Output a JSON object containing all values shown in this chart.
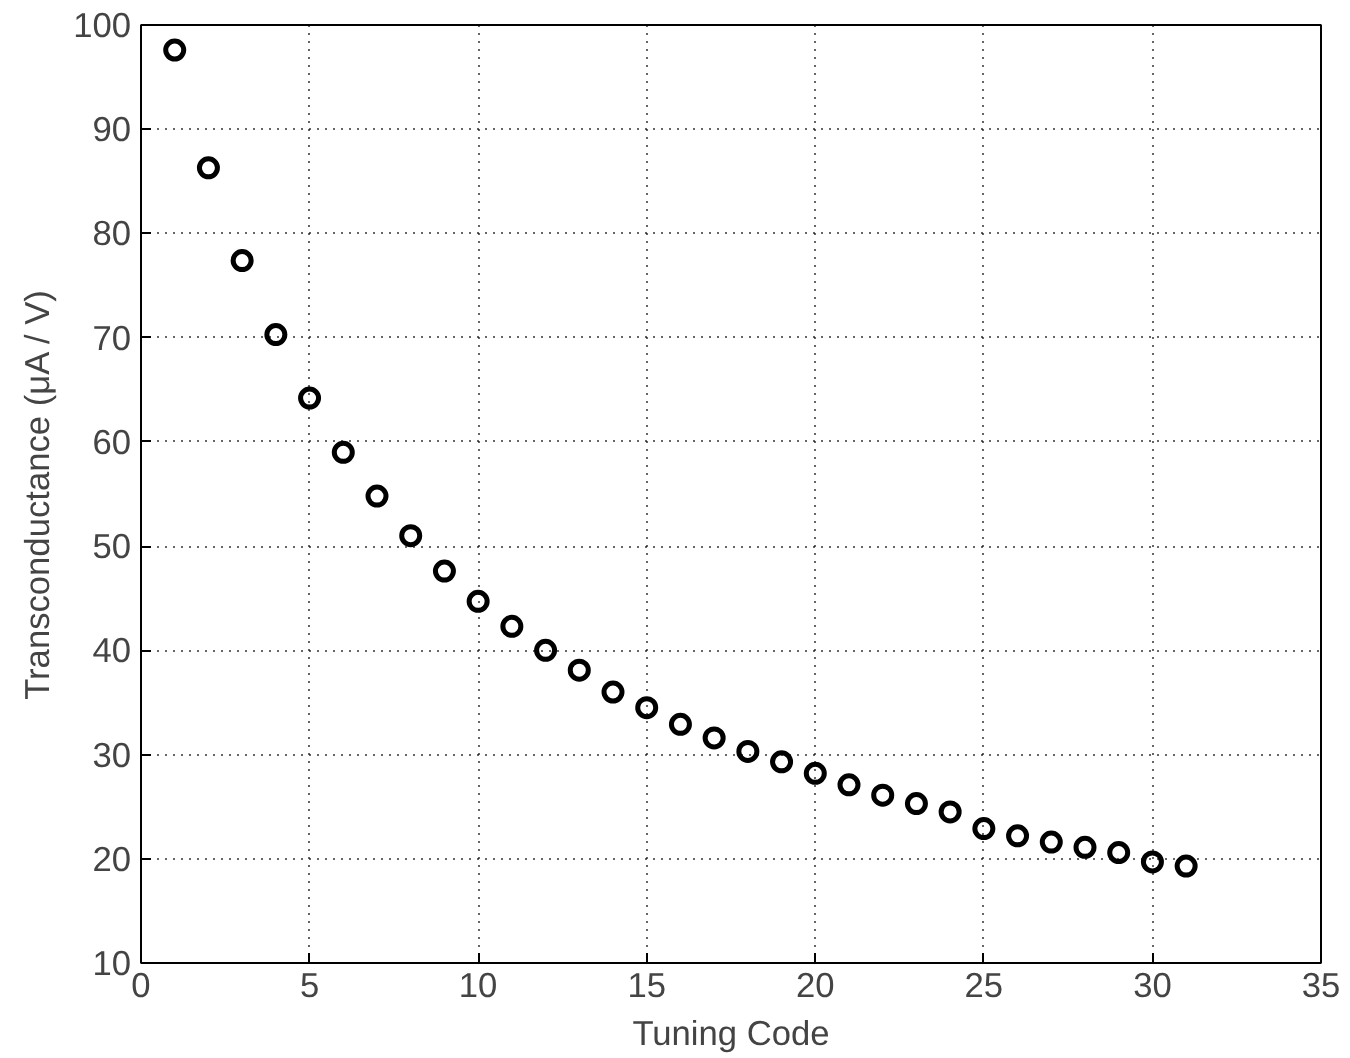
{
  "chart_data": {
    "type": "scatter",
    "xlabel": "Tuning Code",
    "ylabel": "Transconductance (μA / V)",
    "x": [
      1,
      2,
      3,
      4,
      5,
      6,
      7,
      8,
      9,
      10,
      11,
      12,
      13,
      14,
      15,
      16,
      17,
      18,
      19,
      20,
      21,
      22,
      23,
      24,
      25,
      26,
      27,
      28,
      29,
      30,
      31
    ],
    "series": [
      {
        "color": "#000000",
        "values": [
          97.6,
          86.3,
          77.4,
          70.3,
          64.2,
          59.0,
          54.8,
          51.0,
          47.6,
          44.7,
          42.3,
          40.0,
          38.1,
          36.0,
          34.5,
          32.9,
          31.6,
          30.3,
          29.3,
          28.2,
          27.1,
          26.1,
          25.3,
          24.5,
          22.9,
          22.2,
          21.6,
          21.1,
          20.6,
          19.7,
          19.3
        ]
      }
    ],
    "xlim": [
      0,
      35
    ],
    "ylim": [
      10,
      100
    ],
    "xticks": [
      0,
      5,
      10,
      15,
      20,
      25,
      30,
      35
    ],
    "yticks": [
      10,
      20,
      30,
      40,
      50,
      60,
      70,
      80,
      90,
      100
    ],
    "grid": true,
    "marker": "circle"
  }
}
